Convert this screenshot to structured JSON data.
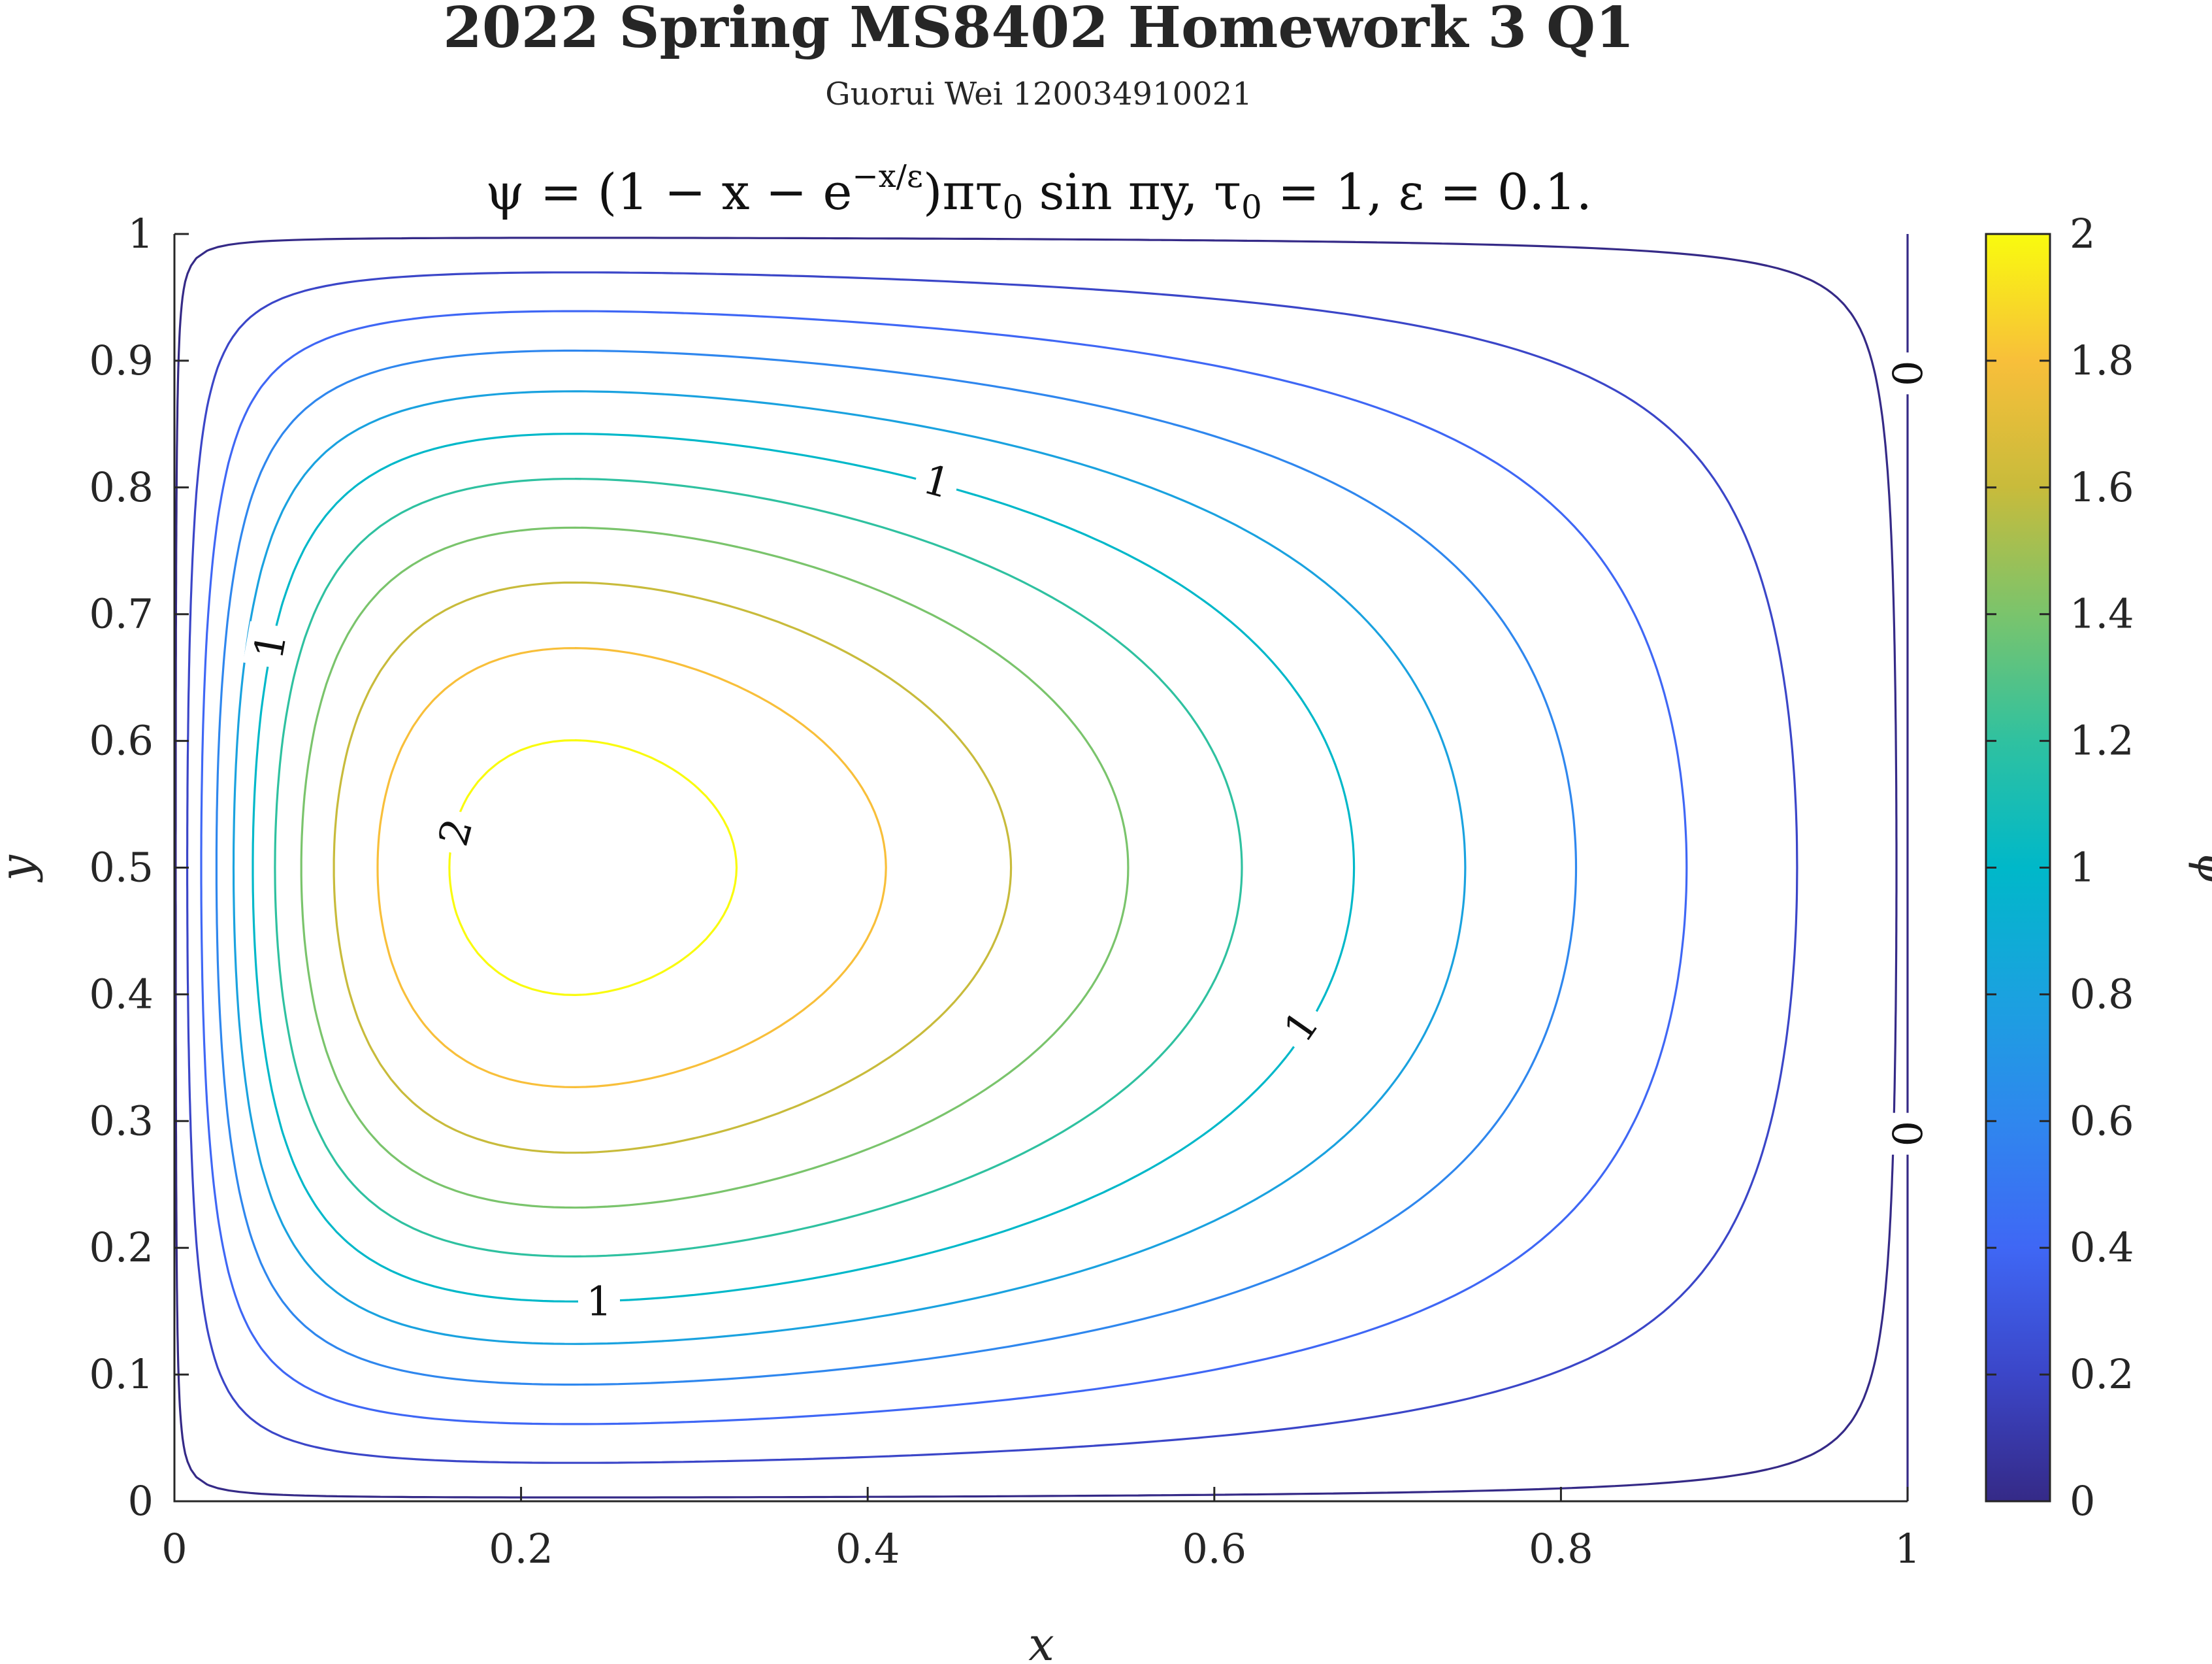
{
  "chart_data": {
    "type": "contour",
    "title": "2022 Spring MS8402 Homework 3 Q1",
    "subtitle": "Guorui Wei 120034910021",
    "formula": "ψ = (1 − x − e^(−x/ε)) π τ₀ sin πy,    τ₀ = 1, ε = 0.1.",
    "formula_parts": {
      "lhs": "ψ = (1 − x − e",
      "exp": "−x/ε",
      "rhs": ")πτ",
      "sub0": "0",
      "rhs2": " sin πy,    τ",
      "sub1": "0",
      "rhs3": " = 1, ε = 0.1."
    },
    "xlabel": "x",
    "ylabel": "y",
    "colorbar_label": "ψ",
    "xlim": [
      0,
      1
    ],
    "ylim": [
      0,
      1
    ],
    "clim": [
      0,
      2
    ],
    "x_ticks": [
      0,
      0.2,
      0.4,
      0.6,
      0.8,
      1
    ],
    "x_tick_labels": [
      "0",
      "0.2",
      "0.4",
      "0.6",
      "0.8",
      "1"
    ],
    "y_ticks": [
      0,
      0.1,
      0.2,
      0.3,
      0.4,
      0.5,
      0.6,
      0.7,
      0.8,
      0.9,
      1
    ],
    "y_tick_labels": [
      "0",
      "0.1",
      "0.2",
      "0.3",
      "0.4",
      "0.5",
      "0.6",
      "0.7",
      "0.8",
      "0.9",
      "1"
    ],
    "colorbar_ticks": [
      0,
      0.2,
      0.4,
      0.6,
      0.8,
      1,
      1.2,
      1.4,
      1.6,
      1.8,
      2
    ],
    "colorbar_tick_labels": [
      "0",
      "0.2",
      "0.4",
      "0.6",
      "0.8",
      "1",
      "1.2",
      "1.4",
      "1.6",
      "1.8",
      "2"
    ],
    "tau0": 1,
    "epsilon": 0.1,
    "levels": [
      0,
      0.2,
      0.4,
      0.6,
      0.8,
      1,
      1.2,
      1.4,
      1.6,
      1.8,
      2
    ],
    "contour_labels": [
      {
        "text": "0",
        "x": 1.0,
        "y": 0.89,
        "rotate": -90
      },
      {
        "text": "0",
        "x": 1.0,
        "y": 0.29,
        "rotate": -90
      },
      {
        "text": "1",
        "x": 0.44,
        "y": 0.805,
        "rotate": 15
      },
      {
        "text": "1",
        "x": 0.055,
        "y": 0.675,
        "rotate": -80
      },
      {
        "text": "1",
        "x": 0.65,
        "y": 0.375,
        "rotate": -55
      },
      {
        "text": "1",
        "x": 0.245,
        "y": 0.158,
        "rotate": 0
      },
      {
        "text": "2",
        "x": 0.162,
        "y": 0.528,
        "rotate": -75
      }
    ],
    "colormap": "parula",
    "grid": false
  }
}
